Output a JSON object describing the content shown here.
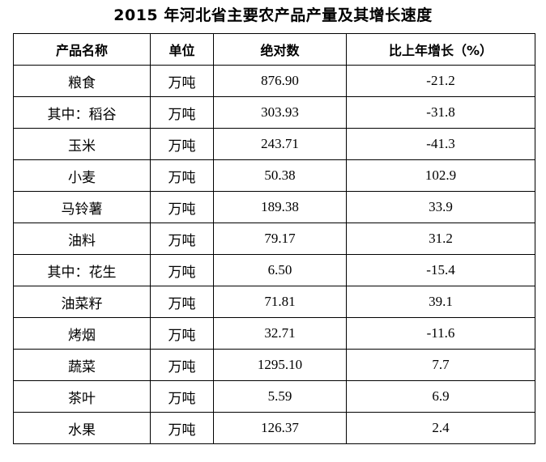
{
  "title": "2015 年河北省主要农产品产量及其增长速度",
  "table": {
    "headers": {
      "product": "产品名称",
      "unit": "单位",
      "absolute": "绝对数",
      "growth": "比上年增长（%）"
    },
    "rows": [
      {
        "product": "粮食",
        "unit": "万吨",
        "absolute": "876.90",
        "growth": "-21.2"
      },
      {
        "product": "其中：稻谷",
        "unit": "万吨",
        "absolute": "303.93",
        "growth": "-31.8"
      },
      {
        "product": "玉米",
        "unit": "万吨",
        "absolute": "243.71",
        "growth": "-41.3"
      },
      {
        "product": "小麦",
        "unit": "万吨",
        "absolute": "50.38",
        "growth": "102.9"
      },
      {
        "product": "马铃薯",
        "unit": "万吨",
        "absolute": "189.38",
        "growth": "33.9"
      },
      {
        "product": "油料",
        "unit": "万吨",
        "absolute": "79.17",
        "growth": "31.2"
      },
      {
        "product": "其中：花生",
        "unit": "万吨",
        "absolute": "6.50",
        "growth": "-15.4"
      },
      {
        "product": "油菜籽",
        "unit": "万吨",
        "absolute": "71.81",
        "growth": "39.1"
      },
      {
        "product": "烤烟",
        "unit": "万吨",
        "absolute": "32.71",
        "growth": "-11.6"
      },
      {
        "product": "蔬菜",
        "unit": "万吨",
        "absolute": "1295.10",
        "growth": "7.7"
      },
      {
        "product": "茶叶",
        "unit": "万吨",
        "absolute": "5.59",
        "growth": "6.9"
      },
      {
        "product": "水果",
        "unit": "万吨",
        "absolute": "126.37",
        "growth": "2.4"
      }
    ]
  }
}
